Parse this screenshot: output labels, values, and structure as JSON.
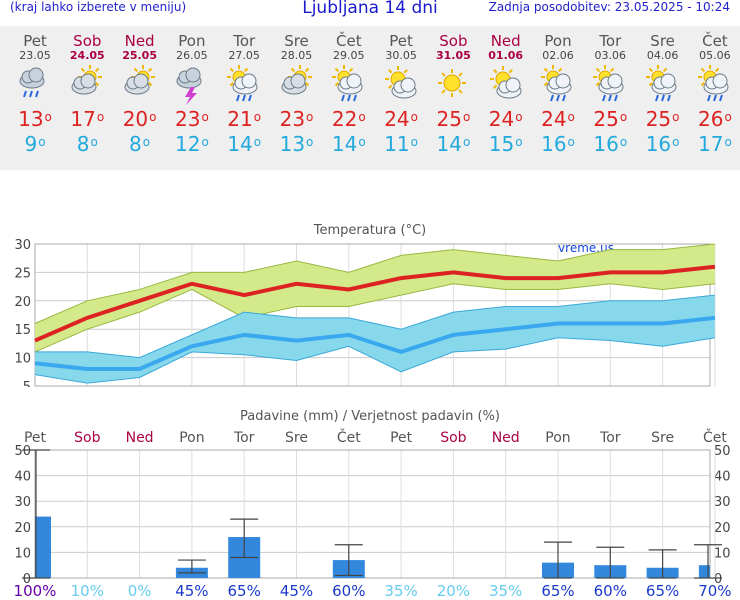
{
  "header": {
    "left_note": "(kraj lahko izberete v meniju)",
    "title": "Ljubljana 14 dni",
    "updated": "Zadnja posodobitev: 23.05.2025 - 10:24"
  },
  "days": [
    {
      "name": "Pet",
      "date": "23.05",
      "weekend": false,
      "icon": "cloud-rain-icon",
      "max": "13",
      "min": "9"
    },
    {
      "name": "Sob",
      "date": "24.05",
      "weekend": true,
      "icon": "partly-cloudy-icon",
      "max": "17",
      "min": "8"
    },
    {
      "name": "Ned",
      "date": "25.05",
      "weekend": true,
      "icon": "partly-cloudy-icon",
      "max": "20",
      "min": "8"
    },
    {
      "name": "Pon",
      "date": "26.05",
      "weekend": false,
      "icon": "thunderstorm-icon",
      "max": "23",
      "min": "12"
    },
    {
      "name": "Tor",
      "date": "27.05",
      "weekend": false,
      "icon": "sun-cloud-rain-icon",
      "max": "21",
      "min": "14"
    },
    {
      "name": "Sre",
      "date": "28.05",
      "weekend": false,
      "icon": "partly-cloudy-icon",
      "max": "23",
      "min": "13"
    },
    {
      "name": "Čet",
      "date": "29.05",
      "weekend": false,
      "icon": "sun-cloud-rain-icon",
      "max": "22",
      "min": "14"
    },
    {
      "name": "Pet",
      "date": "30.05",
      "weekend": false,
      "icon": "sun-cloud-icon",
      "max": "24",
      "min": "11"
    },
    {
      "name": "Sob",
      "date": "31.05",
      "weekend": true,
      "icon": "sun-icon",
      "max": "25",
      "min": "14"
    },
    {
      "name": "Ned",
      "date": "01.06",
      "weekend": true,
      "icon": "sun-cloud-icon",
      "max": "24",
      "min": "15"
    },
    {
      "name": "Pon",
      "date": "02.06",
      "weekend": false,
      "icon": "sun-cloud-rain-icon",
      "max": "24",
      "min": "16"
    },
    {
      "name": "Tor",
      "date": "03.06",
      "weekend": false,
      "icon": "sun-cloud-rain-icon",
      "max": "25",
      "min": "16"
    },
    {
      "name": "Sre",
      "date": "04.06",
      "weekend": false,
      "icon": "sun-cloud-rain-icon",
      "max": "25",
      "min": "16"
    },
    {
      "name": "Čet",
      "date": "05.06",
      "weekend": false,
      "icon": "sun-cloud-rain-icon",
      "max": "26",
      "min": "17"
    }
  ],
  "degree_symbol": "o",
  "colors": {
    "max": "#dd2222",
    "min": "#22aadd",
    "weekend": "#aa0044",
    "bar": "#3388dd",
    "maxBand": "#d4e98a",
    "minBand": "#88d8ec"
  },
  "chart_data": [
    {
      "type": "line",
      "title": "Temperatura (°C)",
      "watermark": "vreme.us",
      "x": [
        "23.05",
        "24.05",
        "25.05",
        "26.05",
        "27.05",
        "28.05",
        "29.05",
        "30.05",
        "31.05",
        "01.06",
        "02.06",
        "03.06",
        "04.06",
        "05.06"
      ],
      "ylim": [
        5,
        30
      ],
      "yticks": [
        5,
        10,
        15,
        20,
        25,
        30
      ],
      "series": [
        {
          "name": "max",
          "values": [
            13,
            17,
            20,
            23,
            21,
            23,
            22,
            24,
            25,
            24,
            24,
            25,
            25,
            26
          ],
          "band_upper": [
            16,
            20,
            22,
            25,
            25,
            27,
            25,
            28,
            29,
            28,
            27,
            29,
            29,
            30
          ],
          "band_lower": [
            11,
            15,
            18,
            22,
            17,
            19,
            19,
            21,
            23,
            22,
            22,
            23,
            22,
            23
          ]
        },
        {
          "name": "min",
          "values": [
            9,
            8,
            8,
            12,
            14,
            13,
            14,
            11,
            14,
            15,
            16,
            16,
            16,
            17
          ],
          "band_upper": [
            11,
            11,
            10,
            14,
            18,
            17,
            17,
            15,
            18,
            19,
            19,
            20,
            20,
            21
          ],
          "band_lower": [
            7,
            5.5,
            6.5,
            11,
            10.5,
            9.5,
            12,
            7.5,
            11,
            11.5,
            13.5,
            13,
            12,
            13.5
          ]
        }
      ],
      "grid": true
    },
    {
      "type": "bar",
      "title": "Padavine (mm) / Verjetnost padavin (%)",
      "categories": [
        "Pet",
        "Sob",
        "Ned",
        "Pon",
        "Tor",
        "Sre",
        "Čet",
        "Pet",
        "Sob",
        "Ned",
        "Pon",
        "Tor",
        "Sre",
        "Čet"
      ],
      "weekend": [
        false,
        true,
        true,
        false,
        false,
        false,
        false,
        false,
        true,
        true,
        false,
        false,
        false,
        false
      ],
      "values": [
        24,
        0,
        0,
        4,
        16,
        0,
        7,
        0,
        0,
        0,
        6,
        5,
        4,
        5
      ],
      "err_low": [
        0,
        0,
        0,
        2,
        8,
        0,
        1,
        0,
        0,
        0,
        0,
        0,
        0,
        0
      ],
      "err_high": [
        50,
        0,
        0,
        7,
        23,
        0,
        13,
        0,
        0,
        0,
        14,
        12,
        11,
        13
      ],
      "probability": [
        "100%",
        "10%",
        "0%",
        "45%",
        "65%",
        "45%",
        "60%",
        "35%",
        "20%",
        "35%",
        "65%",
        "60%",
        "65%",
        "70%"
      ],
      "ylim": [
        0,
        50
      ],
      "yticks": [
        0,
        10,
        20,
        30,
        40,
        50
      ],
      "grid": true
    }
  ]
}
